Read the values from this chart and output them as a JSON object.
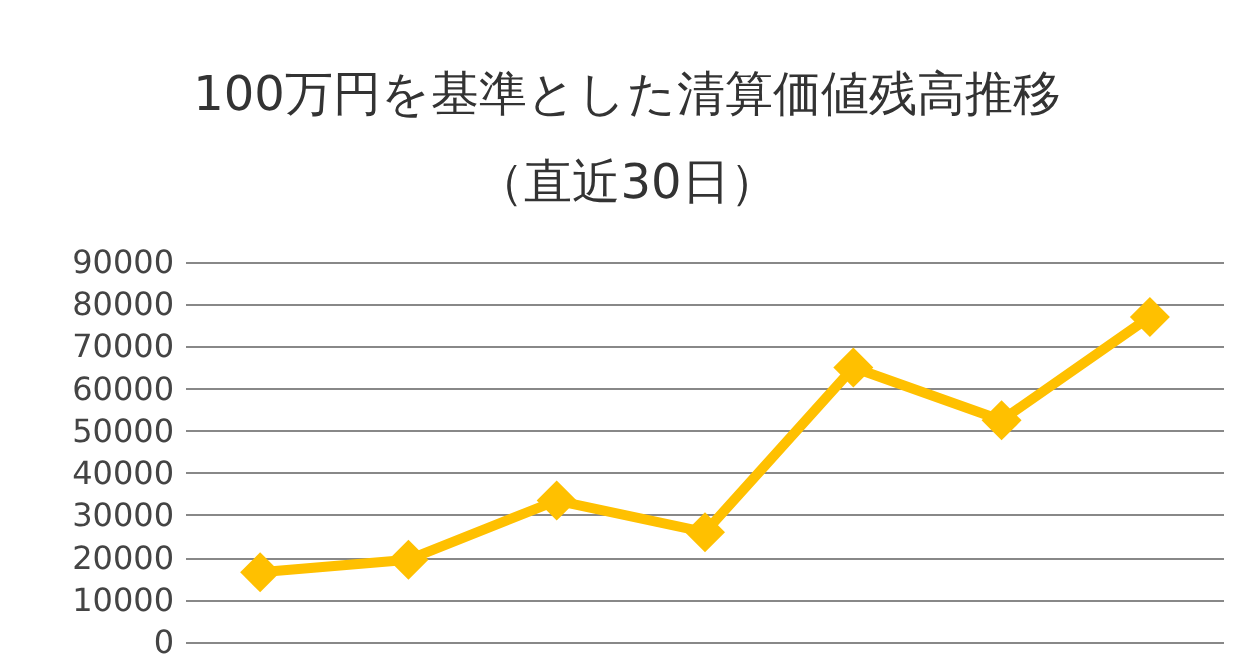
{
  "chart_data": {
    "type": "line",
    "title": "100万円を基準とした清算価値残高推移（直近30日）",
    "categories": [
      null,
      null,
      null,
      null,
      null,
      null,
      null
    ],
    "values": [
      16500,
      19500,
      33500,
      26000,
      65000,
      52500,
      77000
    ],
    "color": "#ffc000",
    "marker": "diamond",
    "line_style": "solid",
    "ylim": [
      0,
      90000
    ],
    "yticks": [
      0,
      10000,
      20000,
      30000,
      40000,
      50000,
      60000,
      70000,
      80000,
      90000
    ],
    "grid": "y"
  }
}
